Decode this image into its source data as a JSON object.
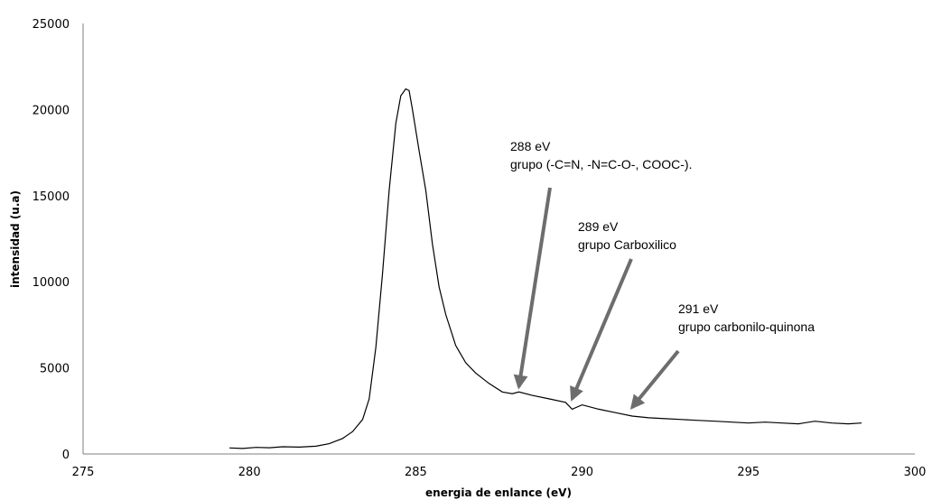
{
  "chart_data": {
    "type": "line",
    "xlabel": "energia de enlance (eV)",
    "ylabel": "intensidad (u.a)",
    "xlim": [
      275,
      300
    ],
    "ylim": [
      0,
      25000
    ],
    "x_ticks": [
      "275",
      "280",
      "285",
      "290",
      "295",
      "300"
    ],
    "y_ticks": [
      "0",
      "5000",
      "10000",
      "15000",
      "20000",
      "25000"
    ],
    "grid": false,
    "legend": "none",
    "line_color": "#000000",
    "arrow_color": "#6d6d6d",
    "series": [
      {
        "x": [
          279.4,
          279.8,
          280.2,
          280.6,
          281.0,
          281.5,
          282.0,
          282.4,
          282.8,
          283.1,
          283.4,
          283.6,
          283.8,
          284.0,
          284.2,
          284.4,
          284.55,
          284.7,
          284.8,
          284.9,
          285.1,
          285.3,
          285.5,
          285.7,
          285.9,
          286.2,
          286.5,
          286.8,
          287.2,
          287.6,
          287.9,
          288.1,
          288.5,
          289.0,
          289.5,
          289.7,
          290.0,
          290.5,
          291.0,
          291.5,
          292.0,
          292.5,
          293.0,
          293.5,
          294.0,
          294.5,
          295.0,
          295.5,
          296.0,
          296.5,
          297.0,
          297.5,
          298.0,
          298.4
        ],
        "y": [
          350,
          320,
          380,
          360,
          420,
          400,
          450,
          600,
          900,
          1300,
          2000,
          3200,
          6200,
          10500,
          15300,
          19200,
          20800,
          21200,
          21100,
          20000,
          17600,
          15300,
          12200,
          9700,
          8100,
          6300,
          5300,
          4700,
          4100,
          3600,
          3500,
          3600,
          3400,
          3200,
          3000,
          2600,
          2850,
          2600,
          2400,
          2200,
          2100,
          2050,
          2000,
          1950,
          1900,
          1850,
          1800,
          1850,
          1800,
          1750,
          1900,
          1800,
          1750,
          1800
        ]
      }
    ],
    "annotations": [
      {
        "line1": "288 eV",
        "line2": "grupo (-C=N, -N=C-O-, COOC-).",
        "x": 288.1,
        "y": 3800
      },
      {
        "line1": "289 eV",
        "line2": "grupo Carboxilico",
        "x": 289.7,
        "y": 3100
      },
      {
        "line1": "291 eV",
        "line2": "grupo carbonilo-quinona",
        "x": 291.5,
        "y": 2600
      }
    ]
  }
}
